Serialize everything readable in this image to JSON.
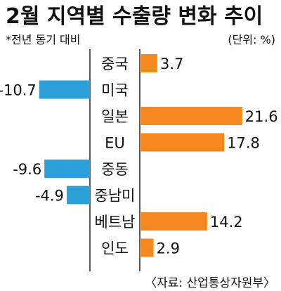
{
  "chart_data": {
    "type": "bar",
    "orientation": "horizontal-diverging",
    "title": "2월 지역별 수출량 변화 추이",
    "subtitle": "*전년 동기 대비",
    "unit": "(단위: %)",
    "source": "〈자료: 산업통상자원부〉",
    "categories": [
      "중국",
      "미국",
      "일본",
      "EU",
      "중동",
      "중남미",
      "베트남",
      "인도"
    ],
    "values": [
      3.7,
      -10.7,
      21.6,
      17.8,
      -9.6,
      -4.9,
      14.2,
      2.9
    ],
    "value_labels": [
      "3.7",
      "-10.7",
      "21.6",
      "17.8",
      "-9.6",
      "-4.9",
      "14.2",
      "2.9"
    ],
    "colors": {
      "positive": "#f5891f",
      "negative": "#2a9fd8"
    }
  }
}
